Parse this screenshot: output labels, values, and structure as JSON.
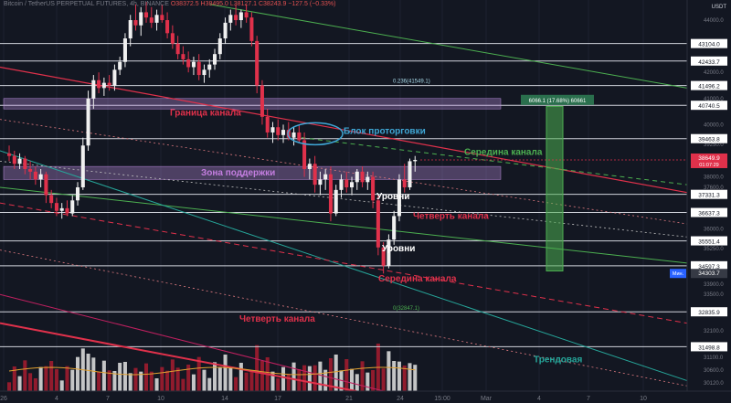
{
  "header": {
    "symbol": "Bitcoin / TetherUS PERPETUAL FUTURES, 4h, BINANCE",
    "ohlc": "O38372.5 H38495.0 L38127.1 C38243.9 −127.5 (−0.33%)"
  },
  "colors": {
    "background": "#131722",
    "up": "#f0f0f0",
    "down": "#e0314b",
    "red_line": "#e0314b",
    "green_line": "#4caf50",
    "teal_line": "#26a69a",
    "purple_zone": "rgba(186,140,220,0.35)",
    "white_level": "#d1d4dc"
  },
  "chart_data": {
    "type": "candlestick",
    "y_unit": "USDT",
    "ylim": [
      29800,
      44700
    ],
    "x_tick_labels": [
      "26",
      "4",
      "7",
      "10",
      "14",
      "17",
      "21",
      "24",
      "15:00",
      "Mar",
      "4",
      "7",
      "10"
    ],
    "price_axis_ticks": [
      44000,
      42000,
      41000,
      40000,
      39250,
      38000,
      37600,
      36000,
      35250,
      33900,
      33500,
      32100,
      31100,
      30600,
      30120
    ],
    "price_axis_tick_labels": [
      "44000.0",
      "42000.0",
      "41000.0",
      "40000.0",
      "39250.0",
      "38000.0",
      "37600.0",
      "36000.0",
      "35250.0",
      "33900.0",
      "33500.0",
      "32100.0",
      "31100.0",
      "30600.0",
      "30120.0"
    ],
    "horizontal_levels": [
      43104.0,
      42433.7,
      41496.2,
      40740.5,
      39463.8,
      37331.3,
      36637.3,
      35551.4,
      34597.3,
      32835.9,
      31498.8
    ],
    "horizontal_level_labels": [
      "43104.0",
      "42433.7",
      "41496.2",
      "40740.5",
      "39463.8",
      "37331.3",
      "36637.3",
      "35551.4",
      "34597.3",
      "32835.9",
      "31498.8"
    ],
    "current_price": 38649.9,
    "current_price_label": "38649.9",
    "countdown": "01:07:29",
    "min_marker": {
      "label": "Мин.",
      "value": "34303.7"
    },
    "fib_labels": [
      "0.236(41549.1)",
      "0(32847.1)"
    ],
    "measure": {
      "label": "6066.1 (17.68%) 60661",
      "from": 34400,
      "to": 40700
    },
    "candles": [
      {
        "o": 38900,
        "h": 39200,
        "l": 38600,
        "c": 38800
      },
      {
        "o": 38800,
        "h": 39000,
        "l": 38300,
        "c": 38500
      },
      {
        "o": 38500,
        "h": 38900,
        "l": 38300,
        "c": 38700
      },
      {
        "o": 38700,
        "h": 38800,
        "l": 38100,
        "c": 38300
      },
      {
        "o": 38300,
        "h": 38600,
        "l": 37900,
        "c": 38200
      },
      {
        "o": 38200,
        "h": 38400,
        "l": 37700,
        "c": 37900
      },
      {
        "o": 37900,
        "h": 38300,
        "l": 37600,
        "c": 38100
      },
      {
        "o": 38100,
        "h": 38200,
        "l": 37000,
        "c": 37300
      },
      {
        "o": 37300,
        "h": 37500,
        "l": 36800,
        "c": 37000
      },
      {
        "o": 37000,
        "h": 37200,
        "l": 36500,
        "c": 36700
      },
      {
        "o": 36700,
        "h": 37000,
        "l": 36400,
        "c": 36800
      },
      {
        "o": 36800,
        "h": 37100,
        "l": 36500,
        "c": 36600
      },
      {
        "o": 36600,
        "h": 37300,
        "l": 36500,
        "c": 37100
      },
      {
        "o": 37100,
        "h": 37800,
        "l": 36900,
        "c": 37600
      },
      {
        "o": 37600,
        "h": 39500,
        "l": 37500,
        "c": 39200
      },
      {
        "o": 39200,
        "h": 41300,
        "l": 39000,
        "c": 41000
      },
      {
        "o": 41000,
        "h": 41900,
        "l": 40600,
        "c": 41700
      },
      {
        "o": 41700,
        "h": 42000,
        "l": 41200,
        "c": 41400
      },
      {
        "o": 41400,
        "h": 41800,
        "l": 41100,
        "c": 41600
      },
      {
        "o": 41600,
        "h": 41900,
        "l": 41300,
        "c": 41500
      },
      {
        "o": 41500,
        "h": 42300,
        "l": 41300,
        "c": 42100
      },
      {
        "o": 42100,
        "h": 42600,
        "l": 41900,
        "c": 42400
      },
      {
        "o": 42400,
        "h": 43500,
        "l": 42200,
        "c": 43300
      },
      {
        "o": 43300,
        "h": 44200,
        "l": 43000,
        "c": 44000
      },
      {
        "o": 44000,
        "h": 44600,
        "l": 43600,
        "c": 43800
      },
      {
        "o": 43800,
        "h": 44500,
        "l": 43400,
        "c": 44300
      },
      {
        "o": 44300,
        "h": 44700,
        "l": 43900,
        "c": 44100
      },
      {
        "o": 44100,
        "h": 44500,
        "l": 43700,
        "c": 43900
      },
      {
        "o": 43900,
        "h": 44400,
        "l": 43600,
        "c": 44200
      },
      {
        "o": 44200,
        "h": 44600,
        "l": 43900,
        "c": 44000
      },
      {
        "o": 44000,
        "h": 44300,
        "l": 43300,
        "c": 43500
      },
      {
        "o": 43500,
        "h": 43800,
        "l": 42900,
        "c": 43100
      },
      {
        "o": 43100,
        "h": 43400,
        "l": 42500,
        "c": 42700
      },
      {
        "o": 42700,
        "h": 43000,
        "l": 42300,
        "c": 42500
      },
      {
        "o": 42500,
        "h": 42800,
        "l": 42000,
        "c": 42200
      },
      {
        "o": 42200,
        "h": 42600,
        "l": 41900,
        "c": 42400
      },
      {
        "o": 42400,
        "h": 42700,
        "l": 41700,
        "c": 41900
      },
      {
        "o": 41900,
        "h": 42300,
        "l": 41600,
        "c": 42100
      },
      {
        "o": 42100,
        "h": 42500,
        "l": 41800,
        "c": 42300
      },
      {
        "o": 42300,
        "h": 42900,
        "l": 42100,
        "c": 42700
      },
      {
        "o": 42700,
        "h": 43500,
        "l": 42500,
        "c": 43300
      },
      {
        "o": 43300,
        "h": 44100,
        "l": 43100,
        "c": 43900
      },
      {
        "o": 43900,
        "h": 44400,
        "l": 43600,
        "c": 44200
      },
      {
        "o": 44200,
        "h": 44600,
        "l": 43800,
        "c": 44000
      },
      {
        "o": 44000,
        "h": 44400,
        "l": 43700,
        "c": 44300
      },
      {
        "o": 44300,
        "h": 44600,
        "l": 43900,
        "c": 44100
      },
      {
        "o": 44100,
        "h": 44300,
        "l": 43000,
        "c": 43200
      },
      {
        "o": 43200,
        "h": 43400,
        "l": 41200,
        "c": 41500
      },
      {
        "o": 41500,
        "h": 41700,
        "l": 40000,
        "c": 40300
      },
      {
        "o": 40300,
        "h": 40600,
        "l": 39500,
        "c": 39700
      },
      {
        "o": 39700,
        "h": 40100,
        "l": 39300,
        "c": 39900
      },
      {
        "o": 39900,
        "h": 40200,
        "l": 39400,
        "c": 39600
      },
      {
        "o": 39600,
        "h": 40000,
        "l": 39300,
        "c": 39800
      },
      {
        "o": 39800,
        "h": 40100,
        "l": 39400,
        "c": 39500
      },
      {
        "o": 39500,
        "h": 39900,
        "l": 39200,
        "c": 39700
      },
      {
        "o": 39700,
        "h": 40000,
        "l": 39300,
        "c": 39400
      },
      {
        "o": 39400,
        "h": 39700,
        "l": 38000,
        "c": 38300
      },
      {
        "o": 38300,
        "h": 38700,
        "l": 37900,
        "c": 38500
      },
      {
        "o": 38500,
        "h": 38800,
        "l": 37400,
        "c": 37700
      },
      {
        "o": 37700,
        "h": 38200,
        "l": 37300,
        "c": 37900
      },
      {
        "o": 37900,
        "h": 38300,
        "l": 37500,
        "c": 38100
      },
      {
        "o": 38100,
        "h": 38400,
        "l": 36300,
        "c": 36600
      },
      {
        "o": 36600,
        "h": 37700,
        "l": 36500,
        "c": 37500
      },
      {
        "o": 37500,
        "h": 38100,
        "l": 37200,
        "c": 37900
      },
      {
        "o": 37900,
        "h": 38200,
        "l": 37400,
        "c": 37600
      },
      {
        "o": 37600,
        "h": 38000,
        "l": 37300,
        "c": 37800
      },
      {
        "o": 37800,
        "h": 38300,
        "l": 37500,
        "c": 38200
      },
      {
        "o": 38200,
        "h": 38400,
        "l": 37600,
        "c": 37800
      },
      {
        "o": 37800,
        "h": 38200,
        "l": 37500,
        "c": 38000
      },
      {
        "o": 38000,
        "h": 38200,
        "l": 36800,
        "c": 37100
      },
      {
        "o": 37100,
        "h": 37300,
        "l": 35000,
        "c": 35300
      },
      {
        "o": 35300,
        "h": 35500,
        "l": 34300,
        "c": 34600
      },
      {
        "o": 34600,
        "h": 35800,
        "l": 34500,
        "c": 35600
      },
      {
        "o": 35600,
        "h": 36700,
        "l": 35400,
        "c": 36500
      },
      {
        "o": 36500,
        "h": 38100,
        "l": 36300,
        "c": 37900
      },
      {
        "o": 37900,
        "h": 38500,
        "l": 37400,
        "c": 37600
      },
      {
        "o": 37600,
        "h": 38700,
        "l": 37500,
        "c": 38600
      },
      {
        "o": 38600,
        "h": 38800,
        "l": 38200,
        "c": 38650
      }
    ]
  },
  "annotations": {
    "channel_border": "Граница канала",
    "consolidation_block": "Блок проторговки",
    "channel_middle_upper": "Середина канала",
    "support_zone": "Зона поддержки",
    "levels_upper": "Уровни",
    "quarter_channel_upper": "Четверть канала",
    "levels_lower": "Уровни",
    "channel_middle_lower": "Середина канала",
    "quarter_channel_lower": "Четверть канала",
    "trend_line": "Трендовая"
  }
}
